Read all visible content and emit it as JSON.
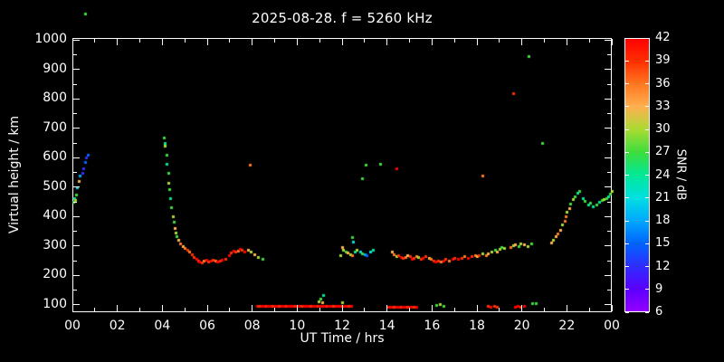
{
  "title": "2025-08-28. f = 5260 kHz",
  "axes": {
    "x_label": "UT Time / hrs",
    "y_label": "Virtual height / km",
    "x_tick_values": [
      0,
      2,
      4,
      6,
      8,
      10,
      12,
      14,
      16,
      18,
      20,
      22,
      24
    ],
    "x_tick_labels": [
      "00",
      "02",
      "04",
      "06",
      "08",
      "10",
      "12",
      "14",
      "16",
      "18",
      "20",
      "22",
      "00"
    ],
    "y_tick_values": [
      100,
      200,
      300,
      400,
      500,
      600,
      700,
      800,
      900,
      1000
    ]
  },
  "colorbar": {
    "label": "SNR / dB",
    "tick_values": [
      6,
      9,
      12,
      15,
      18,
      21,
      24,
      27,
      30,
      33,
      36,
      39,
      42
    ],
    "stops": [
      {
        "v": 6,
        "c": "#9400ff"
      },
      {
        "v": 9,
        "c": "#5a00ff"
      },
      {
        "v": 12,
        "c": "#2e2eff"
      },
      {
        "v": 15,
        "c": "#0064ff"
      },
      {
        "v": 18,
        "c": "#00a8ff"
      },
      {
        "v": 21,
        "c": "#00e0e0"
      },
      {
        "v": 24,
        "c": "#00e896"
      },
      {
        "v": 27,
        "c": "#3ddd3d"
      },
      {
        "v": 30,
        "c": "#a8dc32"
      },
      {
        "v": 33,
        "c": "#ffb050"
      },
      {
        "v": 36,
        "c": "#ff7820"
      },
      {
        "v": 39,
        "c": "#ff3000"
      },
      {
        "v": 42,
        "c": "#ff0000"
      }
    ]
  },
  "chart_data": {
    "type": "scatter",
    "title": "2025-08-28. f = 5260 kHz",
    "xlabel": "UT Time / hrs",
    "ylabel": "Virtual height / km",
    "xlim": [
      0,
      24
    ],
    "ylim": [
      75,
      1007
    ],
    "color_label": "SNR / dB",
    "color_lim": [
      6,
      42
    ],
    "points_format": [
      "ut_hours",
      "virtual_height_km",
      "snr_db"
    ],
    "points": [
      [
        0.05,
        450,
        27
      ],
      [
        0.1,
        462,
        24
      ],
      [
        0.12,
        455,
        30
      ],
      [
        0.18,
        475,
        27
      ],
      [
        0.22,
        500,
        21
      ],
      [
        0.3,
        520,
        33
      ],
      [
        0.33,
        540,
        18
      ],
      [
        0.45,
        550,
        12
      ],
      [
        0.5,
        565,
        12
      ],
      [
        0.55,
        585,
        15
      ],
      [
        0.62,
        600,
        12
      ],
      [
        0.68,
        610,
        15
      ],
      [
        0.55,
        1090,
        27
      ],
      [
        4.05,
        668,
        27
      ],
      [
        4.1,
        650,
        24
      ],
      [
        4.12,
        640,
        30
      ],
      [
        4.18,
        610,
        27
      ],
      [
        4.2,
        580,
        24
      ],
      [
        4.25,
        548,
        27
      ],
      [
        4.28,
        515,
        30
      ],
      [
        4.3,
        492,
        27
      ],
      [
        4.35,
        462,
        24
      ],
      [
        4.4,
        432,
        27
      ],
      [
        4.45,
        402,
        30
      ],
      [
        4.5,
        382,
        27
      ],
      [
        4.55,
        362,
        33
      ],
      [
        4.6,
        345,
        30
      ],
      [
        4.65,
        332,
        27
      ],
      [
        4.72,
        320,
        33
      ],
      [
        4.8,
        310,
        36
      ],
      [
        4.9,
        300,
        33
      ],
      [
        5.0,
        292,
        36
      ],
      [
        5.1,
        286,
        39
      ],
      [
        5.2,
        280,
        36
      ],
      [
        5.3,
        272,
        39
      ],
      [
        5.4,
        264,
        39
      ],
      [
        5.5,
        256,
        42
      ],
      [
        5.6,
        250,
        39
      ],
      [
        5.65,
        246,
        42
      ],
      [
        5.75,
        244,
        39
      ],
      [
        5.85,
        250,
        36
      ],
      [
        5.95,
        252,
        42
      ],
      [
        6.05,
        248,
        39
      ],
      [
        6.15,
        250,
        42
      ],
      [
        6.25,
        254,
        39
      ],
      [
        6.35,
        250,
        36
      ],
      [
        6.45,
        246,
        42
      ],
      [
        6.55,
        250,
        39
      ],
      [
        6.65,
        254,
        42
      ],
      [
        6.8,
        258,
        39
      ],
      [
        6.95,
        268,
        42
      ],
      [
        7.05,
        278,
        39
      ],
      [
        7.15,
        284,
        42
      ],
      [
        7.25,
        280,
        39
      ],
      [
        7.35,
        284,
        36
      ],
      [
        7.45,
        290,
        42
      ],
      [
        7.55,
        286,
        39
      ],
      [
        7.65,
        282,
        42
      ],
      [
        7.8,
        286,
        33
      ],
      [
        7.95,
        280,
        30
      ],
      [
        8.1,
        272,
        33
      ],
      [
        8.25,
        264,
        30
      ],
      [
        8.45,
        256,
        27
      ],
      [
        7.9,
        575,
        36
      ],
      [
        8.2,
        95,
        42
      ],
      [
        8.3,
        95,
        39
      ],
      [
        8.4,
        95,
        42
      ],
      [
        8.5,
        95,
        42
      ],
      [
        8.6,
        95,
        39
      ],
      [
        8.7,
        95,
        42
      ],
      [
        8.8,
        95,
        42
      ],
      [
        8.9,
        95,
        39
      ],
      [
        9.0,
        95,
        42
      ],
      [
        9.1,
        95,
        42
      ],
      [
        9.2,
        95,
        39
      ],
      [
        9.3,
        95,
        42
      ],
      [
        9.4,
        95,
        42
      ],
      [
        9.5,
        95,
        39
      ],
      [
        9.6,
        95,
        42
      ],
      [
        9.7,
        95,
        42
      ],
      [
        9.8,
        95,
        42
      ],
      [
        9.9,
        95,
        39
      ],
      [
        10.0,
        95,
        42
      ],
      [
        10.1,
        95,
        42
      ],
      [
        10.2,
        95,
        39
      ],
      [
        10.3,
        95,
        42
      ],
      [
        10.4,
        95,
        42
      ],
      [
        10.5,
        95,
        42
      ],
      [
        10.6,
        95,
        39
      ],
      [
        10.7,
        95,
        42
      ],
      [
        10.8,
        95,
        42
      ],
      [
        10.9,
        95,
        39
      ],
      [
        11.0,
        95,
        42
      ],
      [
        11.1,
        95,
        42
      ],
      [
        11.2,
        95,
        42
      ],
      [
        11.3,
        95,
        39
      ],
      [
        11.4,
        95,
        42
      ],
      [
        11.5,
        95,
        42
      ],
      [
        11.6,
        95,
        39
      ],
      [
        11.7,
        95,
        42
      ],
      [
        11.8,
        95,
        42
      ],
      [
        11.9,
        95,
        42
      ],
      [
        12.0,
        95,
        39
      ],
      [
        12.1,
        95,
        42
      ],
      [
        12.2,
        95,
        42
      ],
      [
        12.3,
        95,
        39
      ],
      [
        12.4,
        95,
        42
      ],
      [
        10.95,
        112,
        30
      ],
      [
        11.05,
        122,
        27
      ],
      [
        11.15,
        132,
        24
      ],
      [
        11.1,
        108,
        33
      ],
      [
        12.0,
        110,
        30
      ],
      [
        14.0,
        93,
        39
      ],
      [
        14.1,
        93,
        42
      ],
      [
        14.2,
        93,
        42
      ],
      [
        14.3,
        93,
        39
      ],
      [
        14.4,
        93,
        42
      ],
      [
        14.5,
        93,
        42
      ],
      [
        14.6,
        93,
        39
      ],
      [
        14.7,
        93,
        42
      ],
      [
        14.8,
        93,
        42
      ],
      [
        14.9,
        93,
        39
      ],
      [
        15.0,
        93,
        42
      ],
      [
        15.1,
        93,
        42
      ],
      [
        15.2,
        93,
        39
      ],
      [
        15.3,
        93,
        42
      ],
      [
        16.2,
        100,
        27
      ],
      [
        16.35,
        102,
        30
      ],
      [
        16.5,
        98,
        27
      ],
      [
        18.5,
        95,
        39
      ],
      [
        18.62,
        93,
        42
      ],
      [
        18.75,
        95,
        39
      ],
      [
        18.9,
        93,
        39
      ],
      [
        19.7,
        93,
        42
      ],
      [
        19.82,
        95,
        42
      ],
      [
        19.95,
        93,
        39
      ],
      [
        20.1,
        95,
        42
      ],
      [
        20.45,
        105,
        27
      ],
      [
        20.6,
        107,
        27
      ],
      [
        11.9,
        268,
        30
      ],
      [
        12.0,
        298,
        33
      ],
      [
        12.05,
        288,
        30
      ],
      [
        12.15,
        282,
        27
      ],
      [
        12.25,
        278,
        33
      ],
      [
        12.35,
        272,
        30
      ],
      [
        12.45,
        268,
        36
      ],
      [
        12.45,
        330,
        27
      ],
      [
        12.5,
        316,
        21
      ],
      [
        12.55,
        280,
        24
      ],
      [
        12.65,
        286,
        30
      ],
      [
        12.8,
        280,
        21
      ],
      [
        12.9,
        276,
        27
      ],
      [
        13.0,
        272,
        18
      ],
      [
        13.1,
        268,
        15
      ],
      [
        13.25,
        280,
        21
      ],
      [
        13.35,
        286,
        24
      ],
      [
        12.9,
        530,
        27
      ],
      [
        13.05,
        575,
        27
      ],
      [
        13.7,
        578,
        27
      ],
      [
        14.4,
        565,
        42
      ],
      [
        14.2,
        282,
        33
      ],
      [
        14.3,
        272,
        36
      ],
      [
        14.4,
        266,
        30
      ],
      [
        14.5,
        270,
        39
      ],
      [
        14.6,
        264,
        42
      ],
      [
        14.7,
        260,
        39
      ],
      [
        14.8,
        264,
        36
      ],
      [
        14.9,
        270,
        33
      ],
      [
        15.0,
        266,
        39
      ],
      [
        15.1,
        256,
        42
      ],
      [
        15.2,
        260,
        39
      ],
      [
        15.3,
        266,
        36
      ],
      [
        15.4,
        262,
        30
      ],
      [
        15.5,
        256,
        39
      ],
      [
        15.6,
        260,
        42
      ],
      [
        15.7,
        266,
        39
      ],
      [
        15.85,
        260,
        33
      ],
      [
        15.95,
        256,
        36
      ],
      [
        16.05,
        250,
        39
      ],
      [
        16.15,
        246,
        42
      ],
      [
        16.25,
        250,
        39
      ],
      [
        16.4,
        246,
        36
      ],
      [
        16.5,
        250,
        42
      ],
      [
        16.6,
        256,
        39
      ],
      [
        16.75,
        250,
        36
      ],
      [
        16.9,
        256,
        42
      ],
      [
        17.0,
        260,
        39
      ],
      [
        17.15,
        256,
        42
      ],
      [
        17.3,
        260,
        39
      ],
      [
        17.45,
        266,
        36
      ],
      [
        17.6,
        260,
        42
      ],
      [
        17.75,
        266,
        39
      ],
      [
        17.9,
        270,
        36
      ],
      [
        18.0,
        266,
        33
      ],
      [
        18.1,
        270,
        39
      ],
      [
        18.25,
        276,
        30
      ],
      [
        18.4,
        270,
        36
      ],
      [
        18.5,
        276,
        33
      ],
      [
        18.65,
        280,
        30
      ],
      [
        18.8,
        286,
        27
      ],
      [
        18.9,
        282,
        33
      ],
      [
        19.0,
        290,
        30
      ],
      [
        19.1,
        296,
        27
      ],
      [
        19.2,
        292,
        30
      ],
      [
        18.25,
        541,
        36
      ],
      [
        19.5,
        296,
        36
      ],
      [
        19.6,
        302,
        30
      ],
      [
        19.7,
        306,
        33
      ],
      [
        19.85,
        300,
        27
      ],
      [
        19.95,
        310,
        30
      ],
      [
        20.1,
        306,
        33
      ],
      [
        20.25,
        300,
        30
      ],
      [
        20.4,
        310,
        27
      ],
      [
        19.6,
        820,
        39
      ],
      [
        20.3,
        945,
        27
      ],
      [
        20.9,
        650,
        27
      ],
      [
        21.3,
        312,
        33
      ],
      [
        21.4,
        322,
        30
      ],
      [
        21.5,
        332,
        33
      ],
      [
        21.6,
        342,
        36
      ],
      [
        21.7,
        356,
        33
      ],
      [
        21.8,
        372,
        30
      ],
      [
        21.9,
        386,
        36
      ],
      [
        21.95,
        400,
        36
      ],
      [
        22.0,
        416,
        30
      ],
      [
        22.1,
        430,
        33
      ],
      [
        22.15,
        444,
        27
      ],
      [
        22.25,
        458,
        30
      ],
      [
        22.35,
        470,
        27
      ],
      [
        22.45,
        480,
        24
      ],
      [
        22.55,
        488,
        27
      ],
      [
        22.7,
        462,
        24
      ],
      [
        22.8,
        452,
        27
      ],
      [
        22.95,
        442,
        24
      ],
      [
        23.05,
        446,
        27
      ],
      [
        23.15,
        436,
        24
      ],
      [
        23.3,
        440,
        27
      ],
      [
        23.45,
        450,
        24
      ],
      [
        23.55,
        456,
        27
      ],
      [
        23.65,
        460,
        30
      ],
      [
        23.75,
        464,
        27
      ],
      [
        23.85,
        470,
        24
      ],
      [
        23.92,
        478,
        27
      ],
      [
        23.98,
        488,
        30
      ]
    ]
  }
}
